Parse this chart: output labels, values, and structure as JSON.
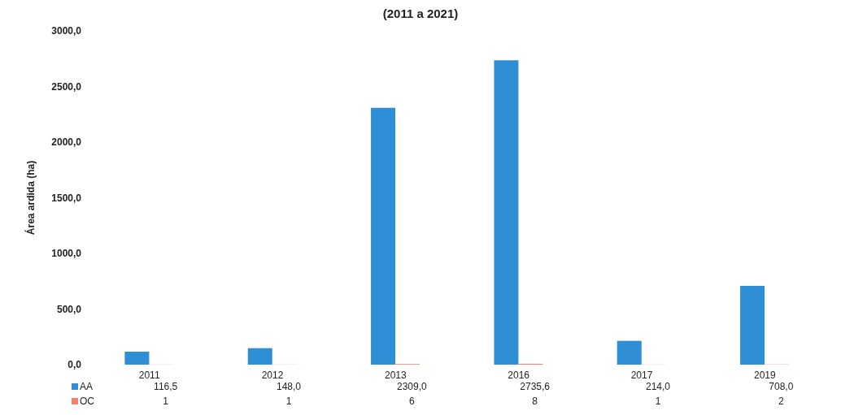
{
  "chart_data": {
    "type": "bar",
    "title": "(2011 a 2021)",
    "ylabel": "Área ardida (ha)",
    "categories": [
      "2011",
      "2012",
      "2013",
      "2016",
      "2017",
      "2019"
    ],
    "series": [
      {
        "name": "AA",
        "color": "#2e8fd6",
        "values": [
          116.5,
          148.0,
          2309.0,
          2735.6,
          214.0,
          708.0
        ],
        "value_labels": [
          "116,5",
          "148,0",
          "2309,0",
          "2735,6",
          "214,0",
          "708,0"
        ]
      },
      {
        "name": "OC",
        "color": "#f4826e",
        "values": [
          1,
          1,
          6,
          8,
          1,
          2
        ],
        "value_labels": [
          "1",
          "1",
          "6",
          "8",
          "1",
          "2"
        ]
      }
    ],
    "ylim": [
      0,
      3000
    ],
    "yticks": [
      {
        "value": 0,
        "label": "0,0"
      },
      {
        "value": 500,
        "label": "500,0"
      },
      {
        "value": 1000,
        "label": "1000,0"
      },
      {
        "value": 1500,
        "label": "1500,0"
      },
      {
        "value": 2000,
        "label": "2000,0"
      },
      {
        "value": 2500,
        "label": "2500,0"
      },
      {
        "value": 3000,
        "label": "3000,0"
      }
    ],
    "grid": false,
    "legend": "bottom"
  }
}
